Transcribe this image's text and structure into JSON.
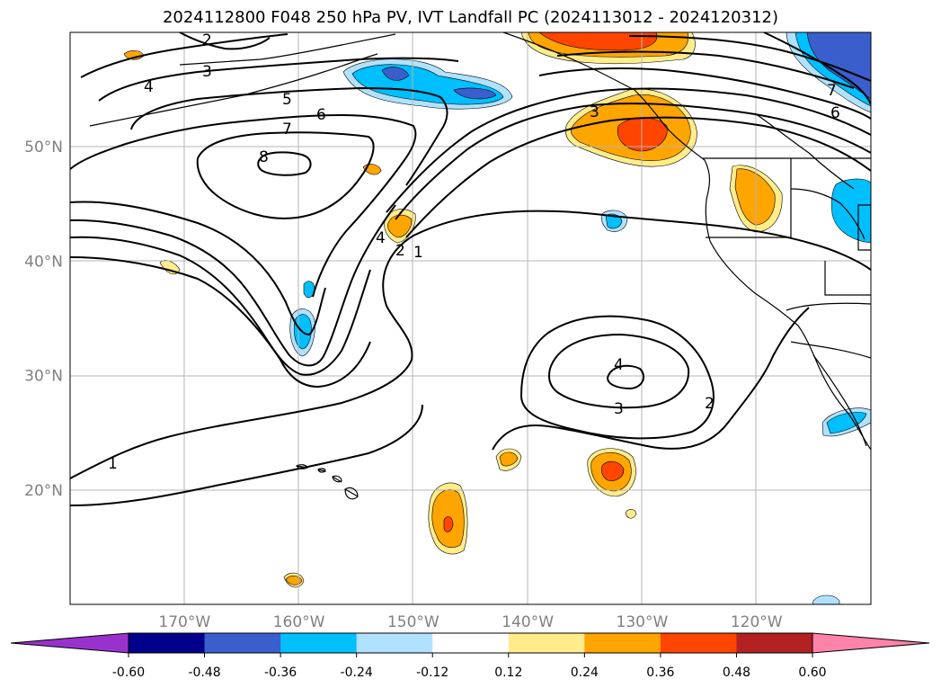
{
  "title": "2024112800 F048 250 hPa PV, IVT Landfall PC (2024113012 - 2024120312)",
  "map": {
    "lon_ticks": [
      {
        "lon": -170,
        "label": "170°W"
      },
      {
        "lon": -160,
        "label": "160°W"
      },
      {
        "lon": -150,
        "label": "150°W"
      },
      {
        "lon": -140,
        "label": "140°W"
      },
      {
        "lon": -130,
        "label": "130°W"
      },
      {
        "lon": -120,
        "label": "120°W"
      }
    ],
    "lat_ticks": [
      {
        "lat": 20,
        "label": "20°N"
      },
      {
        "lat": 30,
        "label": "30°N"
      },
      {
        "lat": 40,
        "label": "40°N"
      },
      {
        "lat": 50,
        "label": "50°N"
      }
    ],
    "gridlines": true
  },
  "pv_contour_labels": [
    "1",
    "2",
    "3",
    "4",
    "5",
    "6",
    "7",
    "8"
  ],
  "colorbar": {
    "ticks": [
      "-0.60",
      "-0.48",
      "-0.36",
      "-0.24",
      "-0.12",
      "0.12",
      "0.24",
      "0.36",
      "0.48",
      "0.60"
    ],
    "colors": [
      "#9932cc",
      "#00008b",
      "#3a5fcd",
      "#00bfff",
      "#b0e2ff",
      "#ffffff",
      "#ffec8b",
      "#ffa500",
      "#ff4500",
      "#b22222",
      "#ff83a8"
    ],
    "extend": "both"
  }
}
